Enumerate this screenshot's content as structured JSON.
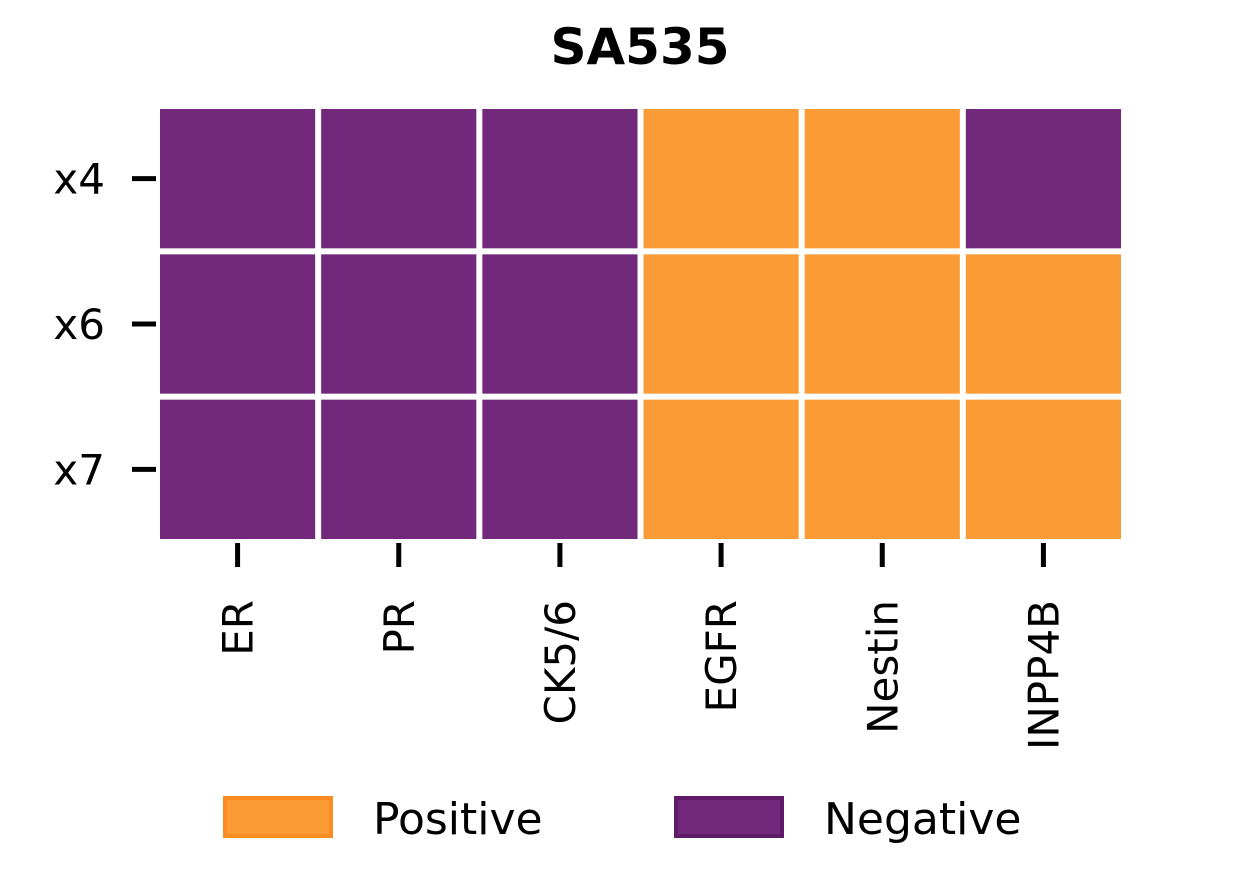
{
  "chart_data": {
    "type": "heatmap",
    "title": "SA535",
    "xlabel": "",
    "ylabel": "",
    "columns": [
      "ER",
      "PR",
      "CK5/6",
      "EGFR",
      "Nestin",
      "INPP4B"
    ],
    "rows": [
      "x4",
      "x6",
      "x7"
    ],
    "values": [
      [
        "Negative",
        "Negative",
        "Negative",
        "Positive",
        "Positive",
        "Negative"
      ],
      [
        "Negative",
        "Negative",
        "Negative",
        "Positive",
        "Positive",
        "Positive"
      ],
      [
        "Negative",
        "Negative",
        "Negative",
        "Positive",
        "Positive",
        "Positive"
      ]
    ],
    "categories": [
      "Positive",
      "Negative"
    ],
    "colors": {
      "Positive": "#fb9b35",
      "Negative": "#72287b",
      "Positive_edge": "#fb8c22",
      "Negative_edge": "#5f1a68"
    },
    "legend": {
      "placement": "bottom-center",
      "entries": [
        "Positive",
        "Negative"
      ]
    },
    "grid": false
  }
}
